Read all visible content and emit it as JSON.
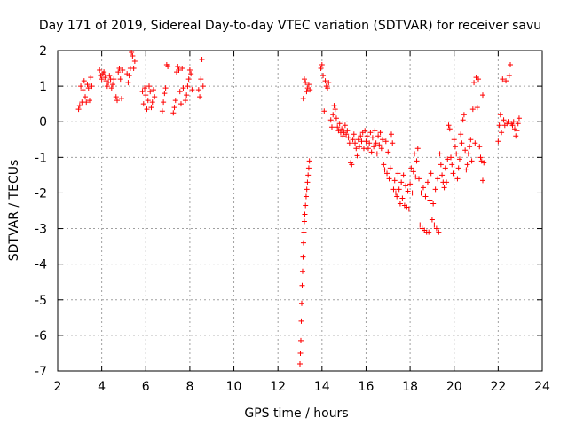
{
  "chart_data": {
    "type": "scatter",
    "title": "Day 171 of 2019, Sidereal Day-to-day VTEC variation (SDTVAR) for receiver savu",
    "xlabel": "GPS time / hours",
    "ylabel": "SDTVAR / TECUs",
    "xlim": [
      2,
      24
    ],
    "ylim": [
      -7,
      2
    ],
    "xticks": [
      2,
      4,
      6,
      8,
      10,
      12,
      14,
      16,
      18,
      20,
      22,
      24
    ],
    "yticks": [
      -7,
      -6,
      -5,
      -4,
      -3,
      -2,
      -1,
      0,
      1,
      2
    ],
    "grid": true,
    "marker": "+",
    "series": [
      {
        "name": "savu",
        "color": "#ff0000",
        "points": [
          [
            2.95,
            0.35
          ],
          [
            3.0,
            0.45
          ],
          [
            3.05,
            1.0
          ],
          [
            3.1,
            0.55
          ],
          [
            3.15,
            0.9
          ],
          [
            3.2,
            1.15
          ],
          [
            3.25,
            0.7
          ],
          [
            3.3,
            0.55
          ],
          [
            3.35,
            1.05
          ],
          [
            3.4,
            0.95
          ],
          [
            3.45,
            0.6
          ],
          [
            3.5,
            1.25
          ],
          [
            3.55,
            1.0
          ],
          [
            3.9,
            1.45
          ],
          [
            3.95,
            1.3
          ],
          [
            4.0,
            1.2
          ],
          [
            4.05,
            1.35
          ],
          [
            4.1,
            1.4
          ],
          [
            4.15,
            1.25
          ],
          [
            4.2,
            1.15
          ],
          [
            4.25,
            1.0
          ],
          [
            4.3,
            1.1
          ],
          [
            4.35,
            1.3
          ],
          [
            4.4,
            1.2
          ],
          [
            4.45,
            0.95
          ],
          [
            4.5,
            1.05
          ],
          [
            4.55,
            1.2
          ],
          [
            4.65,
            0.7
          ],
          [
            4.7,
            0.6
          ],
          [
            4.75,
            1.4
          ],
          [
            4.8,
            1.5
          ],
          [
            4.85,
            1.2
          ],
          [
            4.9,
            0.65
          ],
          [
            4.95,
            1.45
          ],
          [
            5.15,
            1.35
          ],
          [
            5.2,
            1.1
          ],
          [
            5.25,
            1.3
          ],
          [
            5.3,
            1.5
          ],
          [
            5.35,
            1.95
          ],
          [
            5.4,
            1.85
          ],
          [
            5.45,
            1.5
          ],
          [
            5.5,
            1.7
          ],
          [
            5.85,
            0.85
          ],
          [
            5.9,
            0.5
          ],
          [
            5.95,
            0.95
          ],
          [
            6.0,
            0.75
          ],
          [
            6.05,
            0.35
          ],
          [
            6.1,
            0.6
          ],
          [
            6.15,
            1.0
          ],
          [
            6.2,
            0.85
          ],
          [
            6.25,
            0.4
          ],
          [
            6.3,
            0.55
          ],
          [
            6.35,
            0.9
          ],
          [
            6.4,
            0.7
          ],
          [
            6.75,
            0.3
          ],
          [
            6.8,
            0.55
          ],
          [
            6.85,
            0.8
          ],
          [
            6.9,
            0.95
          ],
          [
            6.95,
            1.6
          ],
          [
            7.0,
            1.55
          ],
          [
            7.25,
            0.25
          ],
          [
            7.3,
            0.4
          ],
          [
            7.35,
            0.6
          ],
          [
            7.4,
            1.4
          ],
          [
            7.45,
            1.55
          ],
          [
            7.5,
            1.45
          ],
          [
            7.55,
            0.85
          ],
          [
            7.6,
            0.5
          ],
          [
            7.65,
            1.5
          ],
          [
            7.7,
            0.95
          ],
          [
            7.8,
            0.6
          ],
          [
            7.85,
            0.75
          ],
          [
            7.9,
            1.0
          ],
          [
            7.95,
            1.2
          ],
          [
            8.0,
            1.45
          ],
          [
            8.05,
            1.35
          ],
          [
            8.1,
            0.9
          ],
          [
            8.4,
            0.9
          ],
          [
            8.45,
            0.7
          ],
          [
            8.5,
            1.2
          ],
          [
            8.55,
            1.75
          ],
          [
            8.6,
            1.0
          ],
          [
            13.0,
            -6.8
          ],
          [
            13.02,
            -6.5
          ],
          [
            13.04,
            -6.15
          ],
          [
            13.06,
            -5.6
          ],
          [
            13.08,
            -5.1
          ],
          [
            13.1,
            -4.6
          ],
          [
            13.12,
            -4.2
          ],
          [
            13.14,
            -3.8
          ],
          [
            13.16,
            -3.4
          ],
          [
            13.18,
            -3.1
          ],
          [
            13.2,
            -2.8
          ],
          [
            13.22,
            -2.6
          ],
          [
            13.25,
            -2.35
          ],
          [
            13.28,
            -2.1
          ],
          [
            13.31,
            -1.9
          ],
          [
            13.34,
            -1.7
          ],
          [
            13.37,
            -1.5
          ],
          [
            13.4,
            -1.3
          ],
          [
            13.43,
            -1.1
          ],
          [
            13.15,
            0.65
          ],
          [
            13.2,
            1.2
          ],
          [
            13.25,
            1.1
          ],
          [
            13.3,
            0.85
          ],
          [
            13.35,
            0.95
          ],
          [
            13.4,
            1.05
          ],
          [
            13.45,
            0.9
          ],
          [
            13.95,
            1.5
          ],
          [
            14.0,
            1.6
          ],
          [
            14.05,
            1.3
          ],
          [
            14.1,
            0.3
          ],
          [
            14.15,
            1.15
          ],
          [
            14.2,
            1.0
          ],
          [
            14.25,
            0.95
          ],
          [
            14.3,
            1.1
          ],
          [
            14.4,
            0.05
          ],
          [
            14.45,
            -0.15
          ],
          [
            14.5,
            0.2
          ],
          [
            14.55,
            0.45
          ],
          [
            14.6,
            0.35
          ],
          [
            14.65,
            0.1
          ],
          [
            14.7,
            -0.15
          ],
          [
            14.75,
            -0.25
          ],
          [
            14.8,
            -0.05
          ],
          [
            14.85,
            -0.3
          ],
          [
            14.9,
            -0.2
          ],
          [
            14.95,
            -0.4
          ],
          [
            15.0,
            -0.3
          ],
          [
            15.05,
            -0.1
          ],
          [
            15.1,
            -0.35
          ],
          [
            15.15,
            -0.25
          ],
          [
            15.2,
            -0.45
          ],
          [
            15.25,
            -0.6
          ],
          [
            15.3,
            -1.15
          ],
          [
            15.35,
            -1.2
          ],
          [
            15.4,
            -0.5
          ],
          [
            15.45,
            -0.35
          ],
          [
            15.5,
            -0.6
          ],
          [
            15.55,
            -0.75
          ],
          [
            15.6,
            -0.95
          ],
          [
            15.65,
            -0.5
          ],
          [
            15.7,
            -0.7
          ],
          [
            15.75,
            -0.4
          ],
          [
            15.8,
            -0.55
          ],
          [
            15.85,
            -0.3
          ],
          [
            15.9,
            -0.75
          ],
          [
            15.95,
            -0.25
          ],
          [
            16.0,
            -0.55
          ],
          [
            16.05,
            -0.4
          ],
          [
            16.1,
            -0.75
          ],
          [
            16.15,
            -0.6
          ],
          [
            16.2,
            -0.3
          ],
          [
            16.25,
            -0.85
          ],
          [
            16.3,
            -0.45
          ],
          [
            16.35,
            -0.7
          ],
          [
            16.4,
            -0.25
          ],
          [
            16.45,
            -0.6
          ],
          [
            16.5,
            -0.9
          ],
          [
            16.55,
            -0.4
          ],
          [
            16.6,
            -0.65
          ],
          [
            16.65,
            -0.3
          ],
          [
            16.7,
            -0.75
          ],
          [
            16.75,
            -0.5
          ],
          [
            16.8,
            -1.2
          ],
          [
            16.85,
            -1.35
          ],
          [
            16.9,
            -0.55
          ],
          [
            16.95,
            -1.45
          ],
          [
            17.0,
            -0.85
          ],
          [
            17.05,
            -1.6
          ],
          [
            17.1,
            -1.3
          ],
          [
            17.15,
            -0.35
          ],
          [
            17.2,
            -0.6
          ],
          [
            17.25,
            -1.9
          ],
          [
            17.3,
            -1.65
          ],
          [
            17.35,
            -2.0
          ],
          [
            17.4,
            -2.1
          ],
          [
            17.45,
            -1.45
          ],
          [
            17.5,
            -1.9
          ],
          [
            17.55,
            -2.3
          ],
          [
            17.6,
            -1.7
          ],
          [
            17.65,
            -2.15
          ],
          [
            17.7,
            -1.5
          ],
          [
            17.75,
            -2.35
          ],
          [
            17.8,
            -1.8
          ],
          [
            17.85,
            -2.4
          ],
          [
            17.9,
            -1.95
          ],
          [
            17.95,
            -2.45
          ],
          [
            18.0,
            -1.75
          ],
          [
            18.05,
            -1.3
          ],
          [
            18.1,
            -2.0
          ],
          [
            18.15,
            -1.4
          ],
          [
            18.2,
            -0.9
          ],
          [
            18.25,
            -1.55
          ],
          [
            18.3,
            -1.1
          ],
          [
            18.35,
            -0.75
          ],
          [
            18.4,
            -1.6
          ],
          [
            18.45,
            -2.9
          ],
          [
            18.5,
            -2.0
          ],
          [
            18.55,
            -3.0
          ],
          [
            18.6,
            -1.85
          ],
          [
            18.65,
            -3.05
          ],
          [
            18.7,
            -2.1
          ],
          [
            18.75,
            -3.1
          ],
          [
            18.8,
            -1.7
          ],
          [
            18.85,
            -3.1
          ],
          [
            18.9,
            -2.2
          ],
          [
            18.95,
            -1.45
          ],
          [
            19.0,
            -2.75
          ],
          [
            19.05,
            -2.3
          ],
          [
            19.1,
            -2.9
          ],
          [
            19.15,
            -1.9
          ],
          [
            19.2,
            -3.0
          ],
          [
            19.25,
            -1.6
          ],
          [
            19.3,
            -3.1
          ],
          [
            19.35,
            -0.9
          ],
          [
            19.4,
            -1.2
          ],
          [
            19.45,
            -1.5
          ],
          [
            19.5,
            -1.7
          ],
          [
            19.55,
            -1.85
          ],
          [
            19.6,
            -1.3
          ],
          [
            19.65,
            -1.7
          ],
          [
            19.7,
            -1.05
          ],
          [
            19.75,
            -0.1
          ],
          [
            19.8,
            -0.2
          ],
          [
            19.85,
            -1.0
          ],
          [
            19.9,
            -1.2
          ],
          [
            19.95,
            -1.45
          ],
          [
            20.0,
            -0.5
          ],
          [
            20.05,
            -0.7
          ],
          [
            20.1,
            -0.9
          ],
          [
            20.15,
            -1.6
          ],
          [
            20.2,
            -1.3
          ],
          [
            20.25,
            -1.05
          ],
          [
            20.3,
            -0.35
          ],
          [
            20.35,
            -0.6
          ],
          [
            20.4,
            0.05
          ],
          [
            20.45,
            0.2
          ],
          [
            20.5,
            -0.8
          ],
          [
            20.55,
            -1.35
          ],
          [
            20.6,
            -1.2
          ],
          [
            20.65,
            -0.9
          ],
          [
            20.7,
            -0.7
          ],
          [
            20.75,
            -0.5
          ],
          [
            20.8,
            -1.1
          ],
          [
            20.85,
            0.35
          ],
          [
            20.9,
            1.1
          ],
          [
            20.95,
            -0.6
          ],
          [
            21.0,
            1.25
          ],
          [
            21.05,
            0.4
          ],
          [
            21.1,
            1.2
          ],
          [
            21.15,
            -0.7
          ],
          [
            21.2,
            -1.0
          ],
          [
            21.25,
            -1.1
          ],
          [
            21.3,
            0.75
          ],
          [
            21.3,
            -1.65
          ],
          [
            21.35,
            -1.15
          ],
          [
            22.0,
            -0.55
          ],
          [
            22.05,
            -0.1
          ],
          [
            22.1,
            0.2
          ],
          [
            22.15,
            -0.3
          ],
          [
            22.2,
            1.2
          ],
          [
            22.25,
            0.05
          ],
          [
            22.3,
            -0.1
          ],
          [
            22.35,
            1.15
          ],
          [
            22.4,
            -0.05
          ],
          [
            22.45,
            0.0
          ],
          [
            22.5,
            1.3
          ],
          [
            22.55,
            1.6
          ],
          [
            22.6,
            -0.05
          ],
          [
            22.65,
            -0.1
          ],
          [
            22.7,
            0.0
          ],
          [
            22.75,
            -0.2
          ],
          [
            22.8,
            -0.4
          ],
          [
            22.85,
            -0.25
          ],
          [
            22.9,
            -0.05
          ],
          [
            22.95,
            0.1
          ]
        ]
      }
    ]
  }
}
